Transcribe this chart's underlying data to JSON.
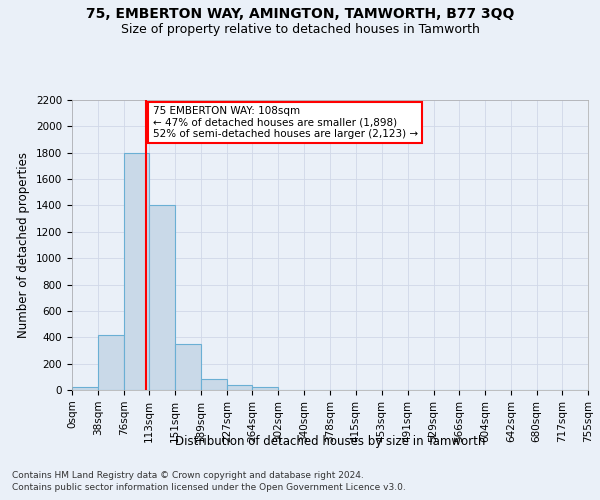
{
  "title1": "75, EMBERTON WAY, AMINGTON, TAMWORTH, B77 3QQ",
  "title2": "Size of property relative to detached houses in Tamworth",
  "xlabel": "Distribution of detached houses by size in Tamworth",
  "ylabel": "Number of detached properties",
  "footer1": "Contains HM Land Registry data © Crown copyright and database right 2024.",
  "footer2": "Contains public sector information licensed under the Open Government Licence v3.0.",
  "annotation_title": "75 EMBERTON WAY: 108sqm",
  "annotation_line1": "← 47% of detached houses are smaller (1,898)",
  "annotation_line2": "52% of semi-detached houses are larger (2,123) →",
  "property_size": 108,
  "bin_edges": [
    0,
    38,
    76,
    113,
    151,
    189,
    227,
    264,
    302,
    340,
    378,
    415,
    453,
    491,
    529,
    566,
    604,
    642,
    680,
    717,
    755
  ],
  "bar_heights": [
    20,
    420,
    1800,
    1400,
    350,
    80,
    35,
    20,
    0,
    0,
    0,
    0,
    0,
    0,
    0,
    0,
    0,
    0,
    0,
    0
  ],
  "bar_color": "#c9d9e8",
  "bar_edge_color": "#6aafd4",
  "vline_color": "#ff0000",
  "vline_x": 108,
  "annotation_box_color": "#ff0000",
  "annotation_box_facecolor": "white",
  "grid_color": "#d0d8e8",
  "background_color": "#eaf0f8",
  "ylim": [
    0,
    2200
  ],
  "yticks": [
    0,
    200,
    400,
    600,
    800,
    1000,
    1200,
    1400,
    1600,
    1800,
    2000,
    2200
  ],
  "title1_fontsize": 10,
  "title2_fontsize": 9,
  "xlabel_fontsize": 8.5,
  "ylabel_fontsize": 8.5,
  "tick_fontsize": 7.5,
  "annotation_fontsize": 7.5,
  "footer_fontsize": 6.5
}
